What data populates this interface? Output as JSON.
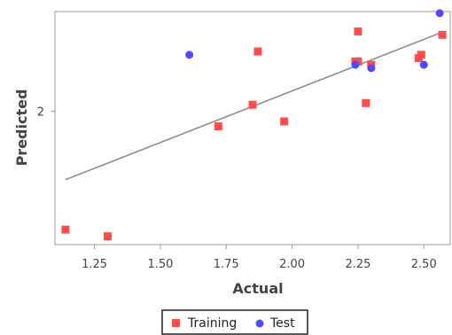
{
  "chart_data": {
    "type": "scatter",
    "xlabel": "Actual",
    "ylabel": "Predicted",
    "xlim": [
      1.1,
      2.6
    ],
    "ylim": [
      1.6,
      2.3
    ],
    "x_ticks": [
      1.25,
      1.5,
      1.75,
      2.0,
      2.25,
      2.5
    ],
    "x_tick_labels": [
      "1.25",
      "1.50",
      "1.75",
      "2.00",
      "2.25",
      "2.50"
    ],
    "y_ticks": [
      2.0
    ],
    "y_tick_labels": [
      "2"
    ],
    "grid": false,
    "legend_position": "bottom",
    "series": [
      {
        "name": "Training",
        "marker": "square",
        "color": "#ff4d4d",
        "points": [
          [
            1.14,
            1.645
          ],
          [
            1.3,
            1.625
          ],
          [
            1.72,
            1.955
          ],
          [
            1.85,
            2.02
          ],
          [
            1.87,
            2.18
          ],
          [
            1.97,
            1.97
          ],
          [
            2.24,
            2.15
          ],
          [
            2.25,
            2.15
          ],
          [
            2.25,
            2.24
          ],
          [
            2.28,
            2.025
          ],
          [
            2.3,
            2.14
          ],
          [
            2.48,
            2.16
          ],
          [
            2.49,
            2.17
          ],
          [
            2.57,
            2.23
          ]
        ]
      },
      {
        "name": "Test",
        "marker": "circle",
        "color": "#4d4dff",
        "points": [
          [
            1.61,
            2.17
          ],
          [
            2.24,
            2.14
          ],
          [
            2.3,
            2.13
          ],
          [
            2.5,
            2.14
          ],
          [
            2.56,
            2.295
          ]
        ]
      }
    ],
    "trend_line": {
      "color": "#888888",
      "from": [
        1.14,
        1.795
      ],
      "to": [
        2.56,
        2.235
      ]
    }
  }
}
